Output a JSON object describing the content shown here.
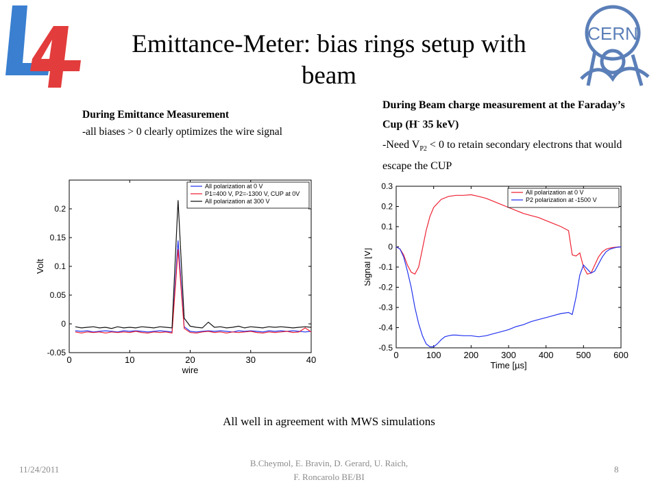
{
  "slide": {
    "title_line1": "Emittance-Meter:  bias rings setup with",
    "title_line2": "beam",
    "left_note": {
      "heading": "During Emittance Measurement",
      "body": "-all biases > 0 clearly optimizes the wire signal"
    },
    "right_note": {
      "heading_a": "During Beam charge measurement at the Faraday’s Cup (H",
      "heading_sup": "-",
      "heading_b": " 35 keV)",
      "body_a": "-Need V",
      "body_sub": "P2",
      "body_b": " < 0 to retain secondary electrons that would escape the CUP"
    },
    "caption": "All well in agreement with MWS simulations",
    "footer": {
      "date": "11/24/2011",
      "authors_line1": "B.Cheymol, E. Bravin, D. Gerard, U. Raich,",
      "authors_line2": "F. Roncarolo BE/BI",
      "page": "8"
    },
    "logos": {
      "left": "L4",
      "right": "CERN"
    },
    "colors": {
      "blue": "#2233ee",
      "red": "#ee2233",
      "black": "#111111"
    }
  },
  "chart_data": [
    {
      "type": "line",
      "xlabel": "wire",
      "ylabel": "Volt",
      "xlim": [
        0,
        40
      ],
      "ylim": [
        -0.05,
        0.25
      ],
      "xticks": [
        0,
        10,
        20,
        30,
        40
      ],
      "yticks": [
        -0.05,
        0,
        0.05,
        0.1,
        0.15,
        0.2
      ],
      "ytick_labels": [
        "-0.05",
        "0",
        "0.05",
        "0.1",
        "0.15",
        "0.2"
      ],
      "grid": false,
      "legend": "top-right",
      "series": [
        {
          "name": "All polarization at 0 V",
          "color": "#2233ee",
          "x": [
            1,
            2,
            3,
            4,
            5,
            6,
            7,
            8,
            9,
            10,
            11,
            12,
            13,
            14,
            15,
            16,
            17,
            18,
            19,
            20,
            21,
            22,
            23,
            24,
            25,
            26,
            27,
            28,
            29,
            30,
            31,
            32,
            33,
            34,
            35,
            36,
            37,
            38,
            39,
            40
          ],
          "y": [
            -0.012,
            -0.013,
            -0.012,
            -0.014,
            -0.013,
            -0.012,
            -0.013,
            -0.014,
            -0.012,
            -0.013,
            -0.012,
            -0.013,
            -0.014,
            -0.013,
            -0.012,
            -0.013,
            -0.014,
            0.145,
            -0.005,
            -0.013,
            -0.014,
            -0.013,
            -0.012,
            -0.013,
            -0.012,
            -0.013,
            -0.014,
            -0.012,
            -0.013,
            -0.012,
            -0.013,
            -0.014,
            -0.012,
            -0.013,
            -0.012,
            -0.013,
            -0.012,
            -0.013,
            -0.014,
            -0.013
          ]
        },
        {
          "name": "P1=400 V, P2=-1300 V, CUP at 0V",
          "color": "#ee2233",
          "x": [
            1,
            2,
            3,
            4,
            5,
            6,
            7,
            8,
            9,
            10,
            11,
            12,
            13,
            14,
            15,
            16,
            17,
            18,
            19,
            20,
            21,
            22,
            23,
            24,
            25,
            26,
            27,
            28,
            29,
            30,
            31,
            32,
            33,
            34,
            35,
            36,
            37,
            38,
            39,
            40
          ],
          "y": [
            -0.014,
            -0.016,
            -0.014,
            -0.015,
            -0.014,
            -0.016,
            -0.014,
            -0.015,
            -0.014,
            -0.015,
            -0.013,
            -0.015,
            -0.016,
            -0.014,
            -0.015,
            -0.014,
            -0.016,
            0.13,
            -0.008,
            -0.015,
            -0.016,
            -0.014,
            -0.013,
            -0.015,
            -0.014,
            -0.016,
            -0.014,
            -0.015,
            -0.014,
            -0.013,
            -0.015,
            -0.016,
            -0.014,
            -0.015,
            -0.014,
            -0.013,
            -0.015,
            -0.014,
            -0.007,
            -0.014
          ]
        },
        {
          "name": "All polarization at 300 V",
          "color": "#111111",
          "x": [
            1,
            2,
            3,
            4,
            5,
            6,
            7,
            8,
            9,
            10,
            11,
            12,
            13,
            14,
            15,
            16,
            17,
            18,
            19,
            20,
            21,
            22,
            23,
            24,
            25,
            26,
            27,
            28,
            29,
            30,
            31,
            32,
            33,
            34,
            35,
            36,
            37,
            38,
            39,
            40
          ],
          "y": [
            -0.005,
            -0.007,
            -0.006,
            -0.005,
            -0.007,
            -0.006,
            -0.008,
            -0.005,
            -0.007,
            -0.006,
            -0.007,
            -0.005,
            -0.006,
            -0.007,
            -0.005,
            -0.006,
            -0.007,
            0.215,
            0.01,
            -0.004,
            -0.006,
            -0.007,
            0.003,
            -0.006,
            -0.005,
            -0.007,
            -0.006,
            -0.004,
            -0.007,
            -0.005,
            -0.006,
            -0.007,
            -0.005,
            -0.006,
            -0.005,
            -0.006,
            -0.007,
            -0.006,
            -0.005,
            -0.006
          ]
        }
      ]
    },
    {
      "type": "line",
      "xlabel": "Time [µs]",
      "ylabel": "Signal [V]",
      "xlim": [
        0,
        600
      ],
      "ylim": [
        -0.5,
        0.3
      ],
      "xticks": [
        0,
        100,
        200,
        300,
        400,
        500,
        600
      ],
      "yticks": [
        -0.5,
        -0.4,
        -0.3,
        -0.2,
        -0.1,
        0,
        0.1,
        0.2,
        0.3
      ],
      "ytick_labels": [
        "-0.5",
        "-0.4",
        "-0.3",
        "-0.2",
        "-0.1",
        "0",
        "0.1",
        "0.2",
        "0.3"
      ],
      "grid": false,
      "legend": "top-right",
      "series": [
        {
          "name": "All polarization at 0 V",
          "color": "#ee2233",
          "x": [
            0,
            10,
            20,
            30,
            40,
            50,
            60,
            70,
            80,
            90,
            100,
            120,
            140,
            160,
            180,
            200,
            220,
            240,
            260,
            280,
            300,
            320,
            340,
            360,
            380,
            400,
            420,
            440,
            460,
            470,
            480,
            490,
            500,
            510,
            520,
            530,
            540,
            550,
            560,
            570,
            580,
            590,
            600
          ],
          "y": [
            0,
            -0.01,
            -0.04,
            -0.09,
            -0.125,
            -0.135,
            -0.1,
            -0.01,
            0.08,
            0.15,
            0.195,
            0.235,
            0.25,
            0.255,
            0.255,
            0.258,
            0.25,
            0.24,
            0.225,
            0.21,
            0.195,
            0.18,
            0.165,
            0.155,
            0.145,
            0.13,
            0.115,
            0.1,
            0.08,
            -0.04,
            -0.045,
            -0.03,
            -0.1,
            -0.135,
            -0.13,
            -0.09,
            -0.05,
            -0.025,
            -0.012,
            -0.006,
            -0.003,
            -0.001,
            0
          ]
        },
        {
          "name": "P2 polarization at -1500 V",
          "color": "#2233ee",
          "x": [
            0,
            10,
            20,
            30,
            40,
            50,
            60,
            70,
            80,
            90,
            100,
            110,
            120,
            130,
            140,
            150,
            160,
            180,
            200,
            220,
            240,
            260,
            280,
            300,
            320,
            340,
            360,
            380,
            400,
            420,
            440,
            460,
            470,
            480,
            490,
            500,
            510,
            520,
            530,
            540,
            550,
            560,
            570,
            580,
            590,
            600
          ],
          "y": [
            0,
            -0.01,
            -0.05,
            -0.12,
            -0.2,
            -0.3,
            -0.38,
            -0.44,
            -0.48,
            -0.495,
            -0.495,
            -0.48,
            -0.46,
            -0.445,
            -0.44,
            -0.437,
            -0.437,
            -0.44,
            -0.44,
            -0.445,
            -0.44,
            -0.43,
            -0.42,
            -0.41,
            -0.395,
            -0.385,
            -0.37,
            -0.36,
            -0.35,
            -0.34,
            -0.33,
            -0.325,
            -0.335,
            -0.25,
            -0.14,
            -0.09,
            -0.11,
            -0.13,
            -0.12,
            -0.085,
            -0.05,
            -0.025,
            -0.012,
            -0.006,
            -0.002,
            0
          ]
        }
      ]
    }
  ]
}
